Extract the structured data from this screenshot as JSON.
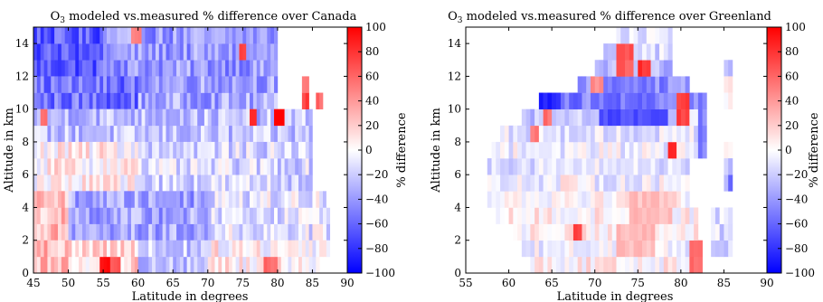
{
  "chart_data": [
    {
      "type": "heatmap",
      "title_prefix": "O",
      "title_subscript": "3",
      "title_rest": " modeled vs.measured % difference over Canada",
      "xlabel": "Latitude in degrees",
      "ylabel": "Altitude in km",
      "colorbar_label": "% difference",
      "xlim": [
        45,
        90
      ],
      "ylim": [
        0,
        15
      ],
      "xticks": [
        45,
        50,
        55,
        60,
        65,
        70,
        75,
        80,
        85,
        90
      ],
      "yticks": [
        0,
        2,
        4,
        6,
        8,
        10,
        12,
        14
      ],
      "color_range": [
        -100,
        100
      ],
      "colorbar_ticks": [
        100,
        80,
        60,
        40,
        20,
        0,
        -20,
        -40,
        -60,
        -80,
        -100
      ],
      "grid": false,
      "cell_lat_step": 0.5,
      "cell_alt_step": 1,
      "data_lat_min": 45,
      "data_lat_max": 87.5,
      "data_alt_min": 0,
      "data_alt_max": 15,
      "bands": [
        {
          "alt": [
            12,
            15
          ],
          "lat": [
            45,
            55
          ],
          "value": -65
        },
        {
          "alt": [
            12,
            15
          ],
          "lat": [
            55,
            80
          ],
          "value": -40
        },
        {
          "alt": [
            10,
            12
          ],
          "lat": [
            45,
            60
          ],
          "value": -55
        },
        {
          "alt": [
            10,
            12
          ],
          "lat": [
            60,
            80
          ],
          "value": -35
        },
        {
          "alt": [
            8,
            10
          ],
          "lat": [
            45,
            85
          ],
          "value": -25
        },
        {
          "alt": [
            5,
            8
          ],
          "lat": [
            45,
            60
          ],
          "value": 5
        },
        {
          "alt": [
            5,
            8
          ],
          "lat": [
            60,
            85
          ],
          "value": -15
        },
        {
          "alt": [
            2,
            5
          ],
          "lat": [
            45,
            50
          ],
          "value": 25
        },
        {
          "alt": [
            2,
            5
          ],
          "lat": [
            50,
            70
          ],
          "value": -35
        },
        {
          "alt": [
            2,
            5
          ],
          "lat": [
            70,
            87.5
          ],
          "value": -10
        },
        {
          "alt": [
            0,
            2
          ],
          "lat": [
            45,
            50
          ],
          "value": 25
        },
        {
          "alt": [
            0,
            2
          ],
          "lat": [
            50,
            60
          ],
          "value": 15
        },
        {
          "alt": [
            0,
            2
          ],
          "lat": [
            60,
            70
          ],
          "value": -20
        },
        {
          "alt": [
            0,
            2
          ],
          "lat": [
            70,
            87.5
          ],
          "value": 5
        }
      ],
      "hotspots": [
        {
          "lat": [
            54.5,
            56
          ],
          "alt": [
            0,
            1
          ],
          "value": 95
        },
        {
          "lat": [
            56,
            57.5
          ],
          "alt": [
            0,
            1
          ],
          "value": 70
        },
        {
          "lat": [
            79.5,
            81
          ],
          "alt": [
            9,
            10
          ],
          "value": 100
        },
        {
          "lat": [
            76,
            77
          ],
          "alt": [
            9,
            10
          ],
          "value": 85
        },
        {
          "lat": [
            83.5,
            84.5
          ],
          "alt": [
            10,
            11
          ],
          "value": 75
        },
        {
          "lat": [
            83.5,
            84.5
          ],
          "alt": [
            11,
            12
          ],
          "value": 55
        },
        {
          "lat": [
            85.5,
            86.5
          ],
          "alt": [
            10,
            11
          ],
          "value": 60
        },
        {
          "lat": [
            46,
            47
          ],
          "alt": [
            9,
            10
          ],
          "value": 55
        },
        {
          "lat": [
            74.5,
            75.5
          ],
          "alt": [
            13,
            14
          ],
          "value": 70
        },
        {
          "lat": [
            78,
            80
          ],
          "alt": [
            0,
            1
          ],
          "value": 60
        },
        {
          "lat": [
            59,
            60.5
          ],
          "alt": [
            14,
            15
          ],
          "value": 50
        }
      ],
      "missing": [
        {
          "lat": [
            82.5,
            87.5
          ],
          "alt": [
            13,
            15
          ]
        },
        {
          "lat": [
            80,
            83
          ],
          "alt": [
            13,
            15
          ]
        },
        {
          "lat": [
            80.5,
            82
          ],
          "alt": [
            11,
            12
          ]
        },
        {
          "lat": [
            86,
            87.5
          ],
          "alt": [
            0,
            1
          ]
        }
      ]
    },
    {
      "type": "heatmap",
      "title_prefix": "O",
      "title_subscript": "3",
      "title_rest": " modeled vs.measured % difference over Greenland",
      "xlabel": "Latitude in degrees",
      "ylabel": "Altitude in km",
      "colorbar_label": "% difference",
      "xlim": [
        55,
        90
      ],
      "ylim": [
        0,
        15
      ],
      "xticks": [
        55,
        60,
        65,
        70,
        75,
        80,
        85,
        90
      ],
      "yticks": [
        0,
        2,
        4,
        6,
        8,
        10,
        12,
        14
      ],
      "color_range": [
        -100,
        100
      ],
      "colorbar_ticks": [
        100,
        80,
        60,
        40,
        20,
        0,
        -20,
        -40,
        -60,
        -80,
        -100
      ],
      "grid": false,
      "cell_lat_step": 0.5,
      "cell_alt_step": 1,
      "coverage": [
        {
          "alt": 0,
          "lat": [
            62.5,
            65
          ],
          "value": 10
        },
        {
          "alt": 0,
          "lat": [
            65,
            82
          ],
          "value": 5
        },
        {
          "alt": 1,
          "lat": [
            61.5,
            82
          ],
          "value": -5
        },
        {
          "alt": 1,
          "lat": [
            83.5,
            86
          ],
          "value": -20
        },
        {
          "alt": 2,
          "lat": [
            60.5,
            82
          ],
          "value": 5
        },
        {
          "alt": 2,
          "lat": [
            83.5,
            86
          ],
          "value": -15
        },
        {
          "alt": 3,
          "lat": [
            58.5,
            82
          ],
          "value": 5
        },
        {
          "alt": 3,
          "lat": [
            83.5,
            86
          ],
          "value": -10
        },
        {
          "alt": 4,
          "lat": [
            57.5,
            81
          ],
          "value": 5
        },
        {
          "alt": 5,
          "lat": [
            57.5,
            81
          ],
          "value": -5
        },
        {
          "alt": 6,
          "lat": [
            57.5,
            81
          ],
          "value": -10
        },
        {
          "alt": 7,
          "lat": [
            58,
            82
          ],
          "value": -5
        },
        {
          "alt": 8,
          "lat": [
            59,
            82
          ],
          "value": -10
        },
        {
          "alt": 9,
          "lat": [
            61.5,
            82
          ],
          "value": -20
        },
        {
          "alt": 10,
          "lat": [
            66,
            82
          ],
          "value": -50
        },
        {
          "alt": 10,
          "lat": [
            63.5,
            66
          ],
          "value": -75
        },
        {
          "alt": 11,
          "lat": [
            68,
            81
          ],
          "value": -45
        },
        {
          "alt": 12,
          "lat": [
            70,
            79
          ],
          "value": -30
        },
        {
          "alt": 13,
          "lat": [
            71,
            79
          ],
          "value": -15
        },
        {
          "alt": 14,
          "lat": [
            72.5,
            79
          ],
          "value": -10
        }
      ],
      "extra_coverage": [
        {
          "lat": [
            85,
            86
          ],
          "alt": [
            12,
            13
          ],
          "value": -30
        },
        {
          "lat": [
            85,
            86
          ],
          "alt": [
            11,
            12
          ],
          "value": 10
        },
        {
          "lat": [
            85,
            86
          ],
          "alt": [
            10,
            11
          ],
          "value": 5
        },
        {
          "lat": [
            85,
            86
          ],
          "alt": [
            7,
            8
          ],
          "value": 5
        },
        {
          "lat": [
            85,
            86
          ],
          "alt": [
            5,
            7
          ],
          "value": -25
        },
        {
          "lat": [
            85.5,
            86
          ],
          "alt": [
            5,
            6
          ],
          "value": -60
        }
      ],
      "hotspots": [
        {
          "lat": [
            72.5,
            74.5
          ],
          "alt": [
            12,
            14
          ],
          "value": 65
        },
        {
          "lat": [
            75,
            76.5
          ],
          "alt": [
            12,
            13
          ],
          "value": 80
        },
        {
          "lat": [
            79.5,
            81
          ],
          "alt": [
            9,
            11
          ],
          "value": 75
        },
        {
          "lat": [
            78.5,
            79.5
          ],
          "alt": [
            7,
            8
          ],
          "value": 90
        },
        {
          "lat": [
            67.5,
            68.5
          ],
          "alt": [
            2,
            3
          ],
          "value": 80
        },
        {
          "lat": [
            81,
            82.5
          ],
          "alt": [
            0,
            2
          ],
          "value": 60
        },
        {
          "lat": [
            62.5,
            63.5
          ],
          "alt": [
            8,
            9
          ],
          "value": 50
        },
        {
          "lat": [
            64,
            65
          ],
          "alt": [
            9,
            10
          ],
          "value": 55
        },
        {
          "lat": [
            69.5,
            71
          ],
          "alt": [
            11,
            12
          ],
          "value": 45
        },
        {
          "lat": [
            74,
            79
          ],
          "alt": [
            3,
            5
          ],
          "value": 25
        },
        {
          "lat": [
            72.5,
            77
          ],
          "alt": [
            1,
            3
          ],
          "value": 25
        },
        {
          "lat": [
            66,
            67.5
          ],
          "alt": [
            5,
            6
          ],
          "value": 20
        }
      ],
      "cold_spots": [
        {
          "lat": [
            70.5,
            78.5
          ],
          "alt": [
            9,
            10
          ],
          "value": -70
        },
        {
          "lat": [
            74,
            77
          ],
          "alt": [
            10,
            11
          ],
          "value": -60
        },
        {
          "lat": [
            82,
            82.5
          ],
          "alt": [
            7,
            11
          ],
          "value": -55
        },
        {
          "lat": [
            82.5,
            83
          ],
          "alt": [
            7,
            11
          ],
          "value": -45
        }
      ]
    }
  ]
}
